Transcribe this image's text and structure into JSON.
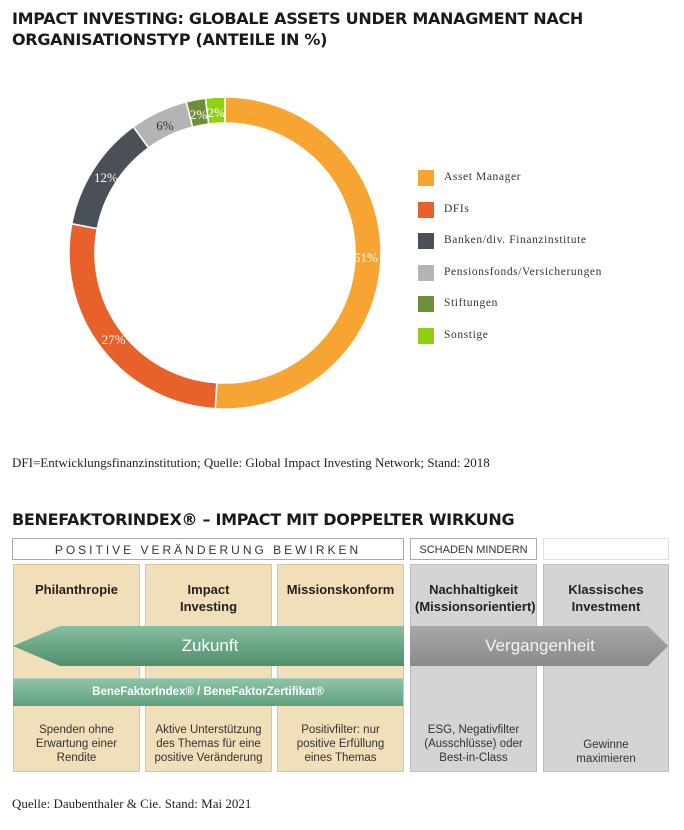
{
  "title1": "IMPACT INVESTING: GLOBALE ASSETS UNDER MANAGMENT NACH ORGANISATIONSTYP (ANTEILE IN %)",
  "source1": "DFI=Entwicklungsfinanzinstitution; Quelle: Global Impact Investing Network; Stand: 2018",
  "chart_data": {
    "type": "pie",
    "donut": true,
    "title": "IMPACT INVESTING: GLOBALE ASSETS UNDER MANAGMENT NACH ORGANISATIONSTYP (ANTEILE IN %)",
    "legend_position": "right",
    "slices": [
      {
        "label": "Asset Manager",
        "value": 51,
        "value_label": "51%",
        "color": "#f7a532"
      },
      {
        "label": "DFIs",
        "value": 27,
        "value_label": "27%",
        "color": "#e8612a"
      },
      {
        "label": "Banken/div. Finanzinstitute",
        "value": 12,
        "value_label": "12%",
        "color": "#4a5058"
      },
      {
        "label": "Pensionsfonds/Versicherungen",
        "value": 6,
        "value_label": "6%",
        "color": "#b2b4b6"
      },
      {
        "label": "Stiftungen",
        "value": 2,
        "value_label": "2%",
        "color": "#6e8f3a"
      },
      {
        "label": "Sonstige",
        "value": 2,
        "value_label": "2%",
        "color": "#8fd112"
      }
    ]
  },
  "title2": "BENEFAKTORINDEX® – IMPACT MIT DOPPELTER WIRKUNG",
  "diagram": {
    "header_positive": "Positive Veränderung bewirken",
    "header_schaden": "Schaden mindern",
    "columns": [
      {
        "heading": "Philanthropie",
        "description": "Spenden ohne Erwartung einer Rendite",
        "color": "#f0dfb8"
      },
      {
        "heading": "Impact Investing",
        "description": "Aktive Unterstützung des Themas für eine positive Veränderung",
        "color": "#f0dfb8"
      },
      {
        "heading": "Missionskonform",
        "description": "Positivfilter: nur positive Erfüllung eines Themas",
        "color": "#f0dfb8"
      },
      {
        "heading": "Nachhaltigkeit (Missionsorientiert)",
        "description": "ESG, Negativfilter (Ausschlüsse) oder Best-in-Class",
        "color": "#d4d4d4"
      },
      {
        "heading": "Klassisches Investment",
        "description": "Gewinne maximieren",
        "color": "#d4d4d4"
      }
    ],
    "arrow_left_label": "Zukunft",
    "arrow_right_label": "Vergangenheit",
    "index_bar_label": "BeneFaktorIndex® / BeneFaktorZertifikat®"
  },
  "source2": "Quelle: Daubenthaler & Cie. Stand: Mai 2021"
}
